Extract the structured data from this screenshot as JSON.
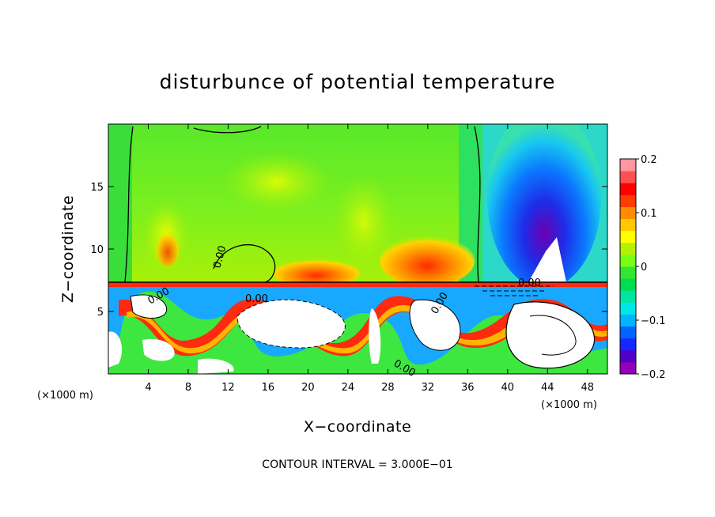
{
  "chart_data": {
    "type": "heatmap",
    "title": "disturbunce of potential temperature",
    "xlabel": "X−coordinate",
    "ylabel": "Z−coordinate",
    "x_unit_left": "(×1000 m)",
    "x_unit_right": "(×1000 m)",
    "xlim": [
      0,
      50
    ],
    "ylim": [
      0,
      20
    ],
    "x_ticks": [
      {
        "value": 4,
        "label": "4"
      },
      {
        "value": 8,
        "label": "8"
      },
      {
        "value": 12,
        "label": "12"
      },
      {
        "value": 16,
        "label": "16"
      },
      {
        "value": 20,
        "label": "20"
      },
      {
        "value": 24,
        "label": "24"
      },
      {
        "value": 28,
        "label": "28"
      },
      {
        "value": 32,
        "label": "32"
      },
      {
        "value": 36,
        "label": "36"
      },
      {
        "value": 40,
        "label": "40"
      },
      {
        "value": 44,
        "label": "44"
      },
      {
        "value": 48,
        "label": "48"
      }
    ],
    "y_ticks": [
      {
        "value": 5,
        "label": "5"
      },
      {
        "value": 10,
        "label": "10"
      },
      {
        "value": 15,
        "label": "15"
      }
    ],
    "colorbar": {
      "min": -0.2,
      "max": 0.2,
      "ticks": [
        {
          "value": 0.2,
          "label": "0.2"
        },
        {
          "value": 0.1,
          "label": "0.1"
        },
        {
          "value": 0,
          "label": "0"
        },
        {
          "value": -0.1,
          "label": "−0.1"
        },
        {
          "value": -0.2,
          "label": "−0.2"
        }
      ],
      "colors": [
        "#9400b8",
        "#5000c8",
        "#1428ff",
        "#0064ff",
        "#00b4ff",
        "#00e6e6",
        "#00e6a0",
        "#00dc50",
        "#32e632",
        "#78ff14",
        "#b4f000",
        "#ffff00",
        "#ffc800",
        "#ff8c00",
        "#ff3c00",
        "#ff0000",
        "#ff5050",
        "#ff96a0"
      ]
    },
    "annotations": [
      "0.00",
      "0.00",
      "0.00",
      "0.00",
      "0.00",
      "0.00"
    ],
    "contour_interval": "CONTOUR INTERVAL = 3.000E−01"
  }
}
